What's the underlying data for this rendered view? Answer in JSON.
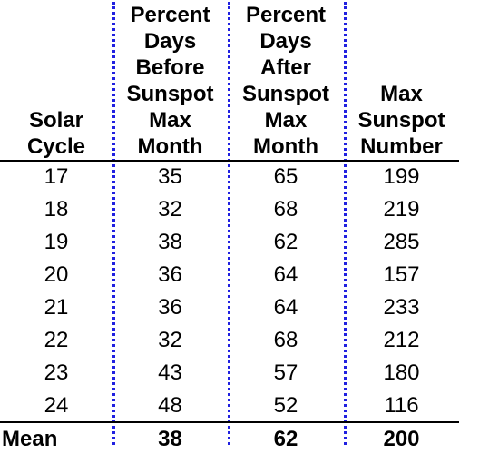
{
  "table": {
    "headers": [
      "Solar\nCycle",
      "Percent\nDays\nBefore\nSunspot\nMax\nMonth",
      "Percent\nDays\nAfter\nSunspot\nMax\nMonth",
      "Max\nSunspot\nNumber"
    ],
    "rows": [
      [
        "17",
        "35",
        "65",
        "199"
      ],
      [
        "18",
        "32",
        "68",
        "219"
      ],
      [
        "19",
        "38",
        "62",
        "285"
      ],
      [
        "20",
        "36",
        "64",
        "157"
      ],
      [
        "21",
        "36",
        "64",
        "233"
      ],
      [
        "22",
        "32",
        "68",
        "212"
      ],
      [
        "23",
        "43",
        "57",
        "180"
      ],
      [
        "24",
        "48",
        "52",
        "116"
      ]
    ],
    "footer": [
      "Mean",
      "38",
      "62",
      "200"
    ],
    "divider_color": "#2020e0"
  }
}
